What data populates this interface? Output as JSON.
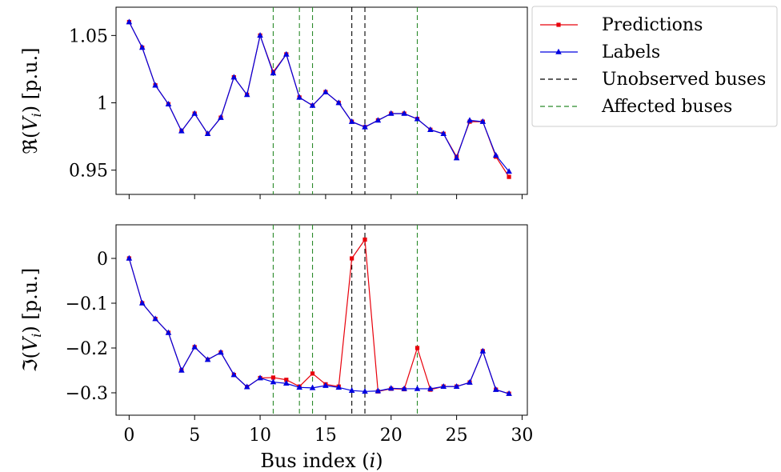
{
  "chart_data": [
    {
      "type": "line",
      "ylabel": "ℜ(V_i) [p.u.]",
      "ylabel_parts": [
        "ℜ(",
        "V",
        "i",
        ") [p.u.]"
      ],
      "xlim": [
        -1,
        30.4
      ],
      "ylim": [
        0.932,
        1.071
      ],
      "yticks": [
        0.95,
        1.0,
        1.05
      ],
      "ytick_labels": [
        "0.95",
        "1",
        "1.05"
      ],
      "xticks": [
        0,
        5,
        10,
        15,
        20,
        25,
        30
      ],
      "grid": false,
      "x": [
        0,
        1,
        2,
        3,
        4,
        5,
        6,
        7,
        8,
        9,
        10,
        11,
        12,
        13,
        14,
        15,
        16,
        17,
        18,
        19,
        20,
        21,
        22,
        23,
        24,
        25,
        26,
        27,
        28,
        29
      ],
      "series": [
        {
          "name": "Predictions",
          "color": "#e8000b",
          "marker": "square",
          "values": [
            1.06,
            1.041,
            1.013,
            0.999,
            0.979,
            0.992,
            0.977,
            0.989,
            1.019,
            1.006,
            1.05,
            1.023,
            1.036,
            1.004,
            0.998,
            1.008,
            1.0,
            0.986,
            0.982,
            0.987,
            0.992,
            0.992,
            0.988,
            0.98,
            0.977,
            0.96,
            0.986,
            0.986,
            0.96,
            0.945
          ]
        },
        {
          "name": "Labels",
          "color": "#0000e0",
          "marker": "triangle",
          "values": [
            1.06,
            1.041,
            1.013,
            0.999,
            0.979,
            0.992,
            0.977,
            0.989,
            1.019,
            1.006,
            1.05,
            1.022,
            1.036,
            1.004,
            0.998,
            1.008,
            1.0,
            0.986,
            0.982,
            0.987,
            0.992,
            0.992,
            0.988,
            0.98,
            0.977,
            0.959,
            0.987,
            0.986,
            0.961,
            0.949
          ]
        }
      ],
      "vlines": [
        {
          "x": 11,
          "group": "Affected buses"
        },
        {
          "x": 13,
          "group": "Affected buses"
        },
        {
          "x": 14,
          "group": "Affected buses"
        },
        {
          "x": 17,
          "group": "Unobserved buses"
        },
        {
          "x": 18,
          "group": "Unobserved buses"
        },
        {
          "x": 22,
          "group": "Affected buses"
        }
      ]
    },
    {
      "type": "line",
      "ylabel": "ℑ(V_i) [p.u.]",
      "ylabel_parts": [
        "ℑ(",
        "V",
        "i",
        ") [p.u.]"
      ],
      "xlabel": "Bus index (i)",
      "xlabel_parts": [
        "Bus index (",
        "i",
        ")"
      ],
      "xlim": [
        -1,
        30.4
      ],
      "ylim": [
        -0.35,
        0.075
      ],
      "yticks": [
        0,
        -0.1,
        -0.2,
        -0.3
      ],
      "ytick_labels": [
        "0",
        "−0.1",
        "−0.2",
        "−0.3"
      ],
      "xticks": [
        0,
        5,
        10,
        15,
        20,
        25,
        30
      ],
      "xtick_labels": [
        "0",
        "5",
        "10",
        "15",
        "20",
        "25",
        "30"
      ],
      "grid": false,
      "x": [
        0,
        1,
        2,
        3,
        4,
        5,
        6,
        7,
        8,
        9,
        10,
        11,
        12,
        13,
        14,
        15,
        16,
        17,
        18,
        19,
        20,
        21,
        22,
        23,
        24,
        25,
        26,
        27,
        28,
        29
      ],
      "series": [
        {
          "name": "Predictions",
          "color": "#e8000b",
          "marker": "square",
          "values": [
            0.0,
            -0.1,
            -0.135,
            -0.166,
            -0.25,
            -0.198,
            -0.226,
            -0.21,
            -0.26,
            -0.287,
            -0.267,
            -0.266,
            -0.271,
            -0.286,
            -0.257,
            -0.281,
            -0.286,
            0.0,
            0.042,
            -0.297,
            -0.291,
            -0.292,
            -0.2,
            -0.293,
            -0.286,
            -0.286,
            -0.277,
            -0.207,
            -0.293,
            -0.302
          ]
        },
        {
          "name": "Labels",
          "color": "#0000e0",
          "marker": "triangle",
          "values": [
            0.0,
            -0.1,
            -0.135,
            -0.166,
            -0.25,
            -0.198,
            -0.226,
            -0.21,
            -0.26,
            -0.287,
            -0.267,
            -0.276,
            -0.279,
            -0.288,
            -0.289,
            -0.284,
            -0.288,
            -0.295,
            -0.297,
            -0.296,
            -0.29,
            -0.291,
            -0.291,
            -0.291,
            -0.286,
            -0.286,
            -0.277,
            -0.207,
            -0.293,
            -0.302
          ]
        }
      ],
      "vlines": [
        {
          "x": 11,
          "group": "Affected buses"
        },
        {
          "x": 13,
          "group": "Affected buses"
        },
        {
          "x": 14,
          "group": "Affected buses"
        },
        {
          "x": 17,
          "group": "Unobserved buses"
        },
        {
          "x": 18,
          "group": "Unobserved buses"
        },
        {
          "x": 22,
          "group": "Affected buses"
        }
      ]
    }
  ],
  "legend": {
    "placement": "upper right outside",
    "entries": [
      {
        "label": "Predictions",
        "color": "#e8000b",
        "style": "solid",
        "marker": "square"
      },
      {
        "label": "Labels",
        "color": "#0000e0",
        "style": "solid",
        "marker": "triangle"
      },
      {
        "label": "Unobserved buses",
        "color": "#000000",
        "style": "dashed",
        "marker": "none"
      },
      {
        "label": "Affected buses",
        "color": "#2a8a2a",
        "style": "dashed",
        "marker": "none"
      }
    ]
  },
  "colors": {
    "predictions": "#e8000b",
    "labels": "#0000e0",
    "unobserved": "#000000",
    "affected": "#2a8a2a"
  }
}
